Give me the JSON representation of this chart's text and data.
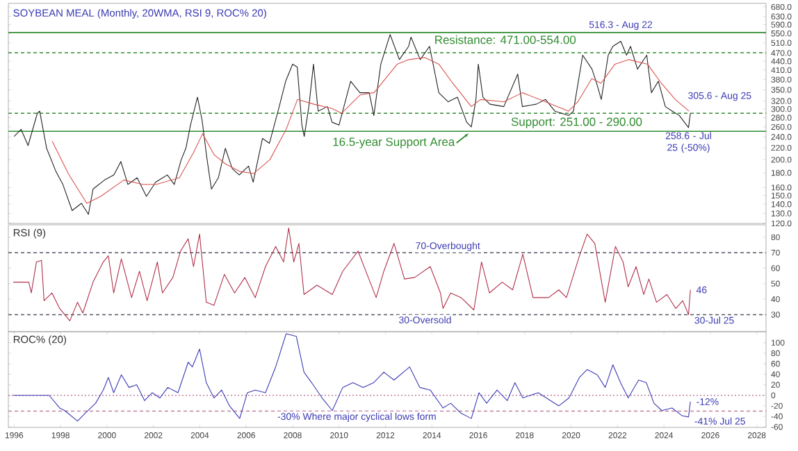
{
  "chart_data": [
    {
      "type": "line",
      "title": "SOYBEAN MEAL (Monthly, 20WMA, RSI 9, ROC% 20)",
      "log": "y",
      "tick_labels": "y",
      "xlim": [
        1995.75,
        2028.4
      ],
      "ylim": [
        120,
        700
      ],
      "yticks": [
        {
          "value": 120,
          "label": "120.0"
        },
        {
          "value": 130,
          "label": "130.0"
        },
        {
          "value": 140,
          "label": "140.0"
        },
        {
          "value": 150,
          "label": "150.0"
        },
        {
          "value": 160,
          "label": "160.0"
        },
        {
          "value": 180,
          "label": "180.0"
        },
        {
          "value": 200,
          "label": "200.0"
        },
        {
          "value": 220,
          "label": "220.0"
        },
        {
          "value": 240,
          "label": "240.0"
        },
        {
          "value": 260,
          "label": "260.0"
        },
        {
          "value": 280,
          "label": "280.0"
        },
        {
          "value": 300,
          "label": "300.0"
        },
        {
          "value": 320,
          "label": "320.0"
        },
        {
          "value": 350,
          "label": "350.0"
        },
        {
          "value": 380,
          "label": "380.0"
        },
        {
          "value": 410,
          "label": "410.0"
        },
        {
          "value": 440,
          "label": "440.0"
        },
        {
          "value": 470,
          "label": "470.0"
        },
        {
          "value": 510,
          "label": "510.0"
        },
        {
          "value": 550,
          "label": "550.0"
        },
        {
          "value": 590,
          "label": "590.0"
        },
        {
          "value": 630,
          "label": "630.0"
        },
        {
          "value": 680,
          "label": "680.0"
        }
      ],
      "series": [
        {
          "color": "#222222",
          "x": [
            1996.0,
            1996.3,
            1996.6,
            1997.0,
            1997.1,
            1997.4,
            1997.8,
            1998.1,
            1998.5,
            1998.9,
            1999.2,
            1999.4,
            1999.9,
            2000.3,
            2000.6,
            2000.9,
            2001.3,
            2001.7,
            2002.1,
            2002.6,
            2002.9,
            2003.2,
            2003.4,
            2003.6,
            2003.9,
            2004.1,
            2004.3,
            2004.5,
            2004.8,
            2005.1,
            2005.4,
            2005.7,
            2006.1,
            2006.3,
            2006.7,
            2007.0,
            2007.4,
            2007.7,
            2008.0,
            2008.2,
            2008.4,
            2008.5,
            2008.7,
            2008.9,
            2009.1,
            2009.5,
            2009.7,
            2010.0,
            2010.5,
            2010.9,
            2011.3,
            2011.5,
            2011.8,
            2012.2,
            2012.6,
            2013.0,
            2013.1,
            2013.5,
            2013.9,
            2014.3,
            2014.7,
            2015.1,
            2015.5,
            2015.7,
            2015.9,
            2016.0,
            2016.2,
            2016.5,
            2017.1,
            2017.7,
            2017.9,
            2018.5,
            2018.9,
            2019.3,
            2019.9,
            2020.1,
            2020.3,
            2020.5,
            2020.9,
            2021.1,
            2021.3,
            2021.6,
            2021.8,
            2022.14,
            2022.39,
            2022.56,
            2022.86,
            2023.26,
            2023.46,
            2023.76,
            2024.06,
            2024.36,
            2024.66,
            2025.06,
            2025.14
          ],
          "values": [
            241,
            255,
            224,
            290,
            295,
            219,
            182,
            164,
            133,
            141,
            129,
            158,
            170,
            177,
            197,
            164,
            173,
            149,
            167,
            177,
            164,
            200,
            219,
            264,
            330,
            274,
            204,
            158,
            173,
            219,
            186,
            177,
            190,
            167,
            237,
            228,
            301,
            375,
            430,
            420,
            264,
            241,
            306,
            430,
            295,
            306,
            270,
            264,
            375,
            342,
            342,
            285,
            430,
            545,
            446,
            496,
            534,
            446,
            496,
            342,
            318,
            330,
            270,
            260,
            324,
            430,
            330,
            312,
            306,
            397,
            306,
            312,
            324,
            295,
            285,
            295,
            369,
            462,
            413,
            369,
            324,
            462,
            496,
            516.3,
            462,
            496,
            413,
            462,
            342,
            375,
            306,
            295,
            285,
            258.6,
            290
          ]
        },
        {
          "color": "#d9534f",
          "x": [
            1997.64,
            1998.33,
            1999.13,
            1999.73,
            2000.73,
            2001.53,
            2002.13,
            2003.12,
            2003.72,
            2004.12,
            2004.62,
            2005.12,
            2005.72,
            2006.32,
            2007.02,
            2007.72,
            2008.21,
            2008.91,
            2009.71,
            2010.11,
            2010.91,
            2011.51,
            2011.91,
            2012.51,
            2013.01,
            2013.7,
            2014.3,
            2014.9,
            2015.7,
            2016.1,
            2017.1,
            2017.9,
            2018.9,
            2019.89,
            2020.29,
            2020.89,
            2021.29,
            2021.89,
            2022.49,
            2023.29,
            2023.89,
            2024.49,
            2025.08
          ],
          "values": [
            232,
            179,
            141,
            149,
            170,
            164,
            164,
            173,
            211,
            246,
            208,
            193,
            182,
            179,
            200,
            255,
            324,
            312,
            301,
            290,
            336,
            342,
            375,
            430,
            446,
            453,
            430,
            369,
            306,
            324,
            318,
            342,
            318,
            295,
            318,
            383,
            369,
            430,
            446,
            430,
            369,
            324,
            295
          ]
        }
      ],
      "ref_lines": [
        {
          "axis": "y",
          "value": 554,
          "color": "#2e8b2e",
          "line_style": "solid"
        },
        {
          "axis": "y",
          "value": 471,
          "color": "#2e8b2e",
          "line_style": "dashed"
        },
        {
          "axis": "y",
          "value": 290,
          "color": "#2e8b2e",
          "line_style": "dashed"
        },
        {
          "axis": "y",
          "value": 251,
          "color": "#2e8b2e",
          "line_style": "solid"
        }
      ],
      "annotations": [
        {
          "text": "516.3 - Aug 22",
          "x": 2022.14,
          "y": 516.3
        },
        {
          "text": "305.6 - Aug 25",
          "x": 2025.14,
          "y": 305.6
        },
        {
          "text": "258.6 - Jul 25 (-50%)",
          "x": 2025.06,
          "y": 258.6
        },
        {
          "text": "16.5-year Support Area",
          "x": 2015.66,
          "y": 250
        },
        "Resistance: 471.00-554.00",
        "Support: 251.00 - 290.00"
      ]
    },
    {
      "type": "line",
      "title": "RSI (9)",
      "tick_labels": "y",
      "xlim": [
        1995.75,
        2028.4
      ],
      "ylim": [
        19,
        88
      ],
      "yticks": [
        30,
        40,
        50,
        60,
        70,
        80
      ],
      "series": [
        {
          "color": "#b0304a",
          "x": [
            1995.96,
            1996.63,
            1996.74,
            1996.96,
            1997.18,
            1997.29,
            1997.63,
            1997.96,
            1998.4,
            1998.73,
            1998.96,
            1999.4,
            1999.84,
            2000.06,
            2000.29,
            2000.62,
            2001.06,
            2001.4,
            2001.73,
            2002.17,
            2002.39,
            2002.84,
            2003.17,
            2003.5,
            2003.73,
            2003.99,
            2004.28,
            2004.61,
            2005.06,
            2005.5,
            2005.94,
            2006.39,
            2006.83,
            2007.27,
            2007.61,
            2007.83,
            2008.05,
            2008.27,
            2008.49,
            2009.05,
            2009.71,
            2010.16,
            2010.82,
            2011.26,
            2011.6,
            2011.93,
            2012.37,
            2012.82,
            2013.26,
            2013.93,
            2014.37,
            2014.48,
            2014.81,
            2015.26,
            2015.81,
            2016.14,
            2016.48,
            2017.03,
            2017.48,
            2017.92,
            2018.36,
            2019.03,
            2019.47,
            2019.8,
            2020.36,
            2020.69,
            2021.02,
            2021.47,
            2021.91,
            2022.24,
            2022.46,
            2022.8,
            2023.13,
            2023.35,
            2023.68,
            2024.13,
            2024.51,
            2024.81,
            2025.06,
            2025.14
          ],
          "values": [
            51,
            51,
            44,
            64,
            65,
            39,
            44,
            34,
            26,
            38,
            31,
            51,
            64,
            68,
            44,
            66,
            41,
            58,
            39,
            64,
            44,
            54,
            71,
            79,
            61,
            82,
            38,
            36,
            56,
            44,
            54,
            41,
            61,
            74,
            64,
            86,
            64,
            76,
            43,
            49,
            43,
            58,
            71,
            54,
            41,
            58,
            76,
            53,
            54,
            61,
            44,
            34,
            44,
            41,
            33,
            64,
            44,
            51,
            46,
            69,
            41,
            41,
            46,
            41,
            68,
            82,
            76,
            38,
            74,
            64,
            48,
            61,
            43,
            53,
            38,
            43,
            34,
            39,
            30,
            46
          ]
        }
      ],
      "ref_lines": [
        {
          "axis": "y",
          "value": 70,
          "label": "70-Overbought",
          "color": "#555566",
          "line_style": "dashed"
        },
        {
          "axis": "y",
          "value": 30,
          "label": "30-Oversold",
          "color": "#555566",
          "line_style": "dashed"
        }
      ],
      "annotations": [
        {
          "text": "46",
          "x": 2025.14,
          "y": 46
        },
        {
          "text": "30-Jul 25",
          "x": 2025.06,
          "y": 30
        }
      ]
    },
    {
      "type": "line",
      "title": "ROC% (20)",
      "xlim": [
        1995.75,
        2028.4
      ],
      "ylim": [
        -61,
        121
      ],
      "yticks": [
        -60,
        -40,
        -20,
        0,
        20,
        40,
        60,
        80,
        100
      ],
      "xticks": [
        1996,
        1998,
        2000,
        2002,
        2004,
        2006,
        2008,
        2010,
        2012,
        2014,
        2016,
        2018,
        2020,
        2022,
        2024,
        2026,
        2028
      ],
      "series": [
        {
          "color": "#3c3cb4",
          "x": [
            1995.96,
            1997.51,
            1997.96,
            1998.18,
            1998.73,
            1999.06,
            1999.51,
            1999.84,
            2000.06,
            2000.29,
            2000.62,
            2000.95,
            2001.28,
            2001.62,
            2001.95,
            2002.28,
            2002.62,
            2003.06,
            2003.5,
            2003.68,
            2003.99,
            2004.28,
            2004.61,
            2004.94,
            2005.28,
            2005.72,
            2006.05,
            2006.39,
            2006.83,
            2007.27,
            2007.72,
            2008.16,
            2008.49,
            2008.82,
            2009.27,
            2009.71,
            2010.16,
            2010.6,
            2011.04,
            2011.49,
            2011.93,
            2012.37,
            2013.04,
            2013.48,
            2013.93,
            2014.48,
            2014.81,
            2015.26,
            2015.7,
            2016.03,
            2016.36,
            2016.81,
            2017.25,
            2017.58,
            2017.92,
            2018.58,
            2019.47,
            2019.91,
            2020.36,
            2020.69,
            2021.13,
            2021.47,
            2021.8,
            2022.13,
            2022.46,
            2022.91,
            2023.24,
            2023.57,
            2023.91,
            2024.35,
            2024.79,
            2025.06,
            2025.14
          ],
          "values": [
            0,
            0,
            -24,
            -29,
            -49,
            -34,
            -15,
            10,
            34,
            5,
            39,
            15,
            20,
            -10,
            5,
            -5,
            15,
            5,
            63,
            54,
            88,
            24,
            -5,
            10,
            -20,
            -44,
            5,
            10,
            5,
            54,
            117,
            112,
            44,
            24,
            -5,
            -29,
            15,
            24,
            15,
            24,
            44,
            29,
            54,
            15,
            10,
            -24,
            -15,
            -34,
            -44,
            5,
            -15,
            10,
            -10,
            24,
            -5,
            5,
            -20,
            -5,
            34,
            49,
            39,
            15,
            58,
            24,
            -5,
            29,
            24,
            -15,
            -29,
            -24,
            -39,
            -41,
            -12
          ]
        }
      ],
      "ref_lines": [
        {
          "axis": "y",
          "value": 0,
          "color": "#c080a0",
          "line_style": "dotted"
        },
        {
          "axis": "y",
          "value": -30,
          "label": "-30% Where major cyclical lows form",
          "color": "#c080a0",
          "line_style": "dashed"
        }
      ],
      "annotations": [
        {
          "text": "-12%",
          "x": 2025.14,
          "y": -12
        },
        {
          "text": "-41% Jul 25",
          "x": 2025.06,
          "y": -41
        }
      ]
    }
  ]
}
